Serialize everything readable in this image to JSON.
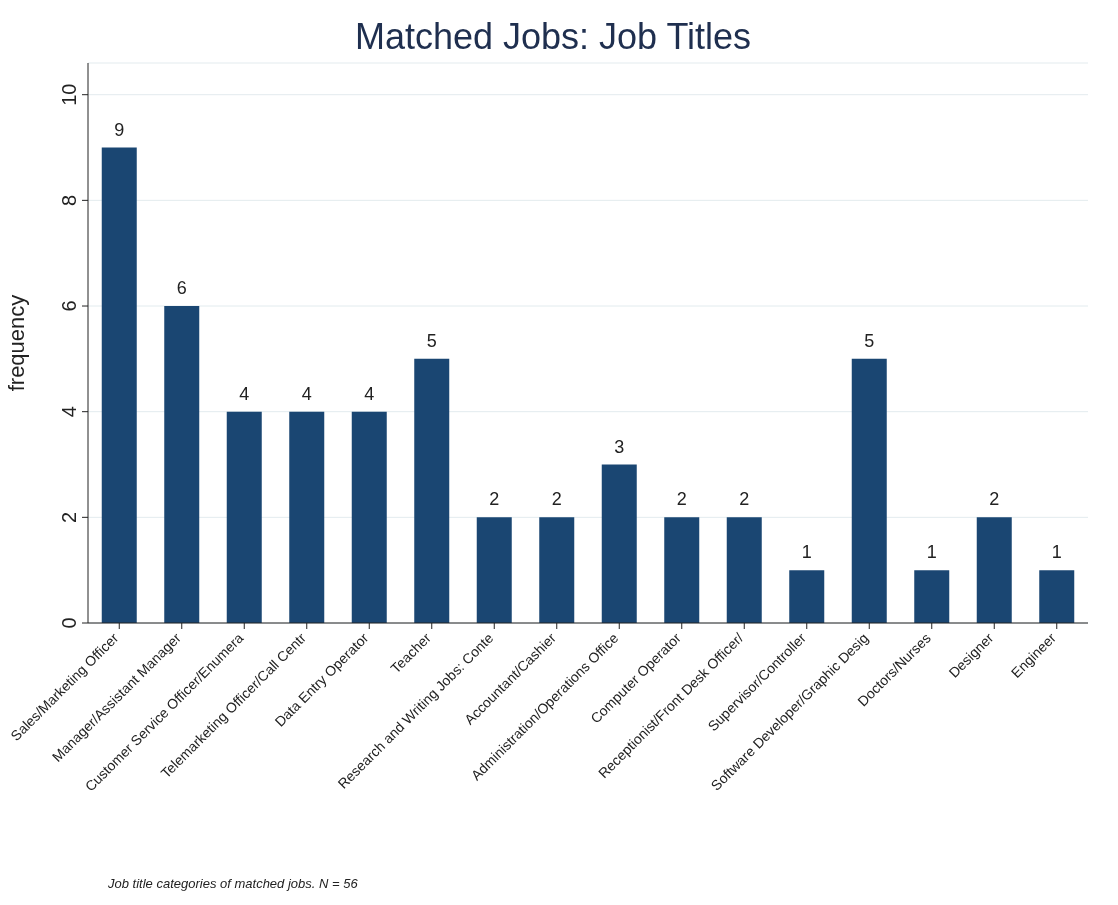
{
  "chart_data": {
    "type": "bar",
    "title": "Matched Jobs: Job Titles",
    "ylabel": "frequency",
    "categories": [
      "Sales/Marketing Officer",
      "Manager/Assistant Manager",
      "Customer Service Officer/Enumera",
      "Telemarketing Officer/Call Centr",
      "Data Entry Operator",
      "Teacher",
      "Research and Writing Jobs: Conte",
      "Accountant/Cashier",
      "Administration/Operations Office",
      "Computer Operator",
      "Receptionist/Front Desk Officer/",
      "Supervisor/Controller",
      "Software Developer/Graphic Desig",
      "Doctors/Nurses",
      "Designer",
      "Engineer"
    ],
    "values": [
      9,
      6,
      4,
      4,
      4,
      5,
      2,
      2,
      3,
      2,
      2,
      1,
      5,
      1,
      2,
      1
    ],
    "color": "#1a4672",
    "ylim": [
      0,
      10.6
    ],
    "yticks": [
      0,
      2,
      4,
      6,
      8,
      10
    ],
    "grid": "y",
    "data_labels": true,
    "annotations": [
      "Job title categories of matched jobs. N = 56"
    ]
  }
}
